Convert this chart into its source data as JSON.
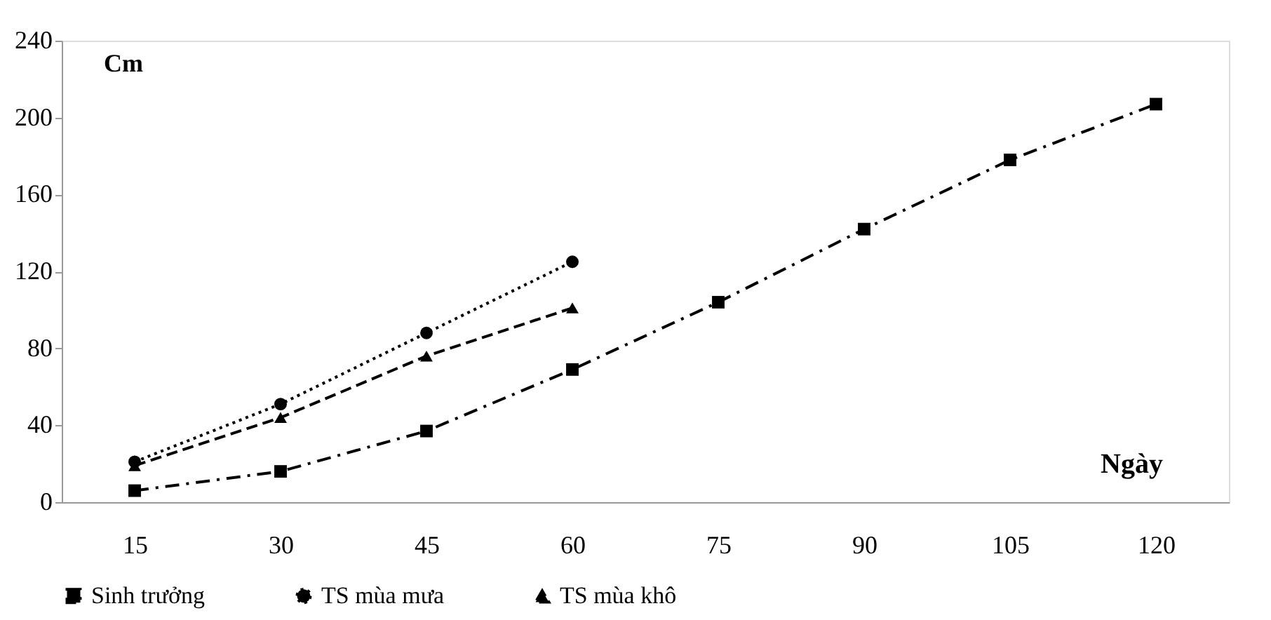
{
  "chart_data": {
    "type": "line",
    "xlabel": "Ngày",
    "ylabel": "Cm",
    "categories": [
      "15",
      "30",
      "45",
      "60",
      "75",
      "90",
      "105",
      "120"
    ],
    "series": [
      {
        "name": "Sinh trưởng",
        "color": "#000000",
        "marker": "square",
        "line_style": "dashed",
        "values": [
          6,
          16,
          37,
          69,
          104,
          142,
          178,
          207
        ]
      },
      {
        "name": "TS mùa mưa",
        "color": "#000000",
        "marker": "circle",
        "line_style": "dotted",
        "values": [
          21,
          51,
          88,
          125,
          null,
          null,
          null,
          null
        ]
      },
      {
        "name": "TS mùa khô",
        "color": "#000000",
        "marker": "triangle",
        "line_style": "dashed",
        "values": [
          19,
          44,
          76,
          101,
          null,
          null,
          null,
          null
        ]
      }
    ],
    "ylim": [
      0,
      240
    ],
    "yticks": [
      0,
      40,
      80,
      120,
      160,
      200,
      240
    ],
    "grid": false,
    "legend": "bottom"
  }
}
